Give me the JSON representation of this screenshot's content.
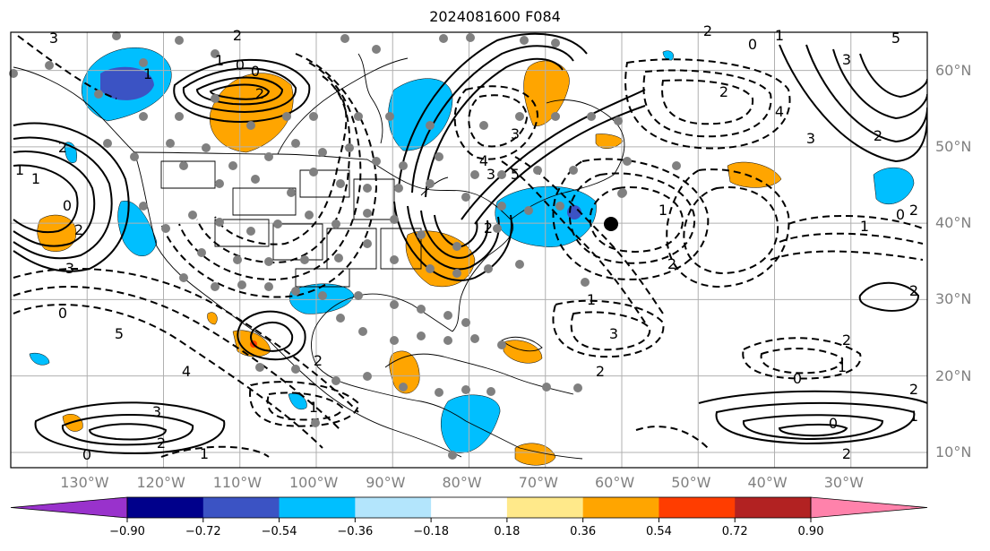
{
  "title": "2024081600 F084",
  "map": {
    "projection": "plate-carree",
    "lon_range": [
      -140,
      -20
    ],
    "lat_range": [
      8,
      65
    ],
    "lon_ticks": [
      "130°W",
      "120°W",
      "110°W",
      "100°W",
      "90°W",
      "80°W",
      "70°W",
      "60°W",
      "50°W",
      "40°W",
      "30°W"
    ],
    "lat_ticks": [
      "60°N",
      "50°N",
      "40°N",
      "30°N",
      "20°N",
      "10°N"
    ],
    "grid": true,
    "contour_labels": [
      "3",
      "2",
      "1",
      "0",
      "0",
      "1",
      "2",
      "3",
      "4",
      "5",
      "2",
      "1",
      "0",
      "2",
      "4",
      "3",
      "2",
      "5",
      "3",
      "2",
      "1",
      "0",
      "1",
      "2",
      "3",
      "2",
      "1",
      "0",
      "2",
      "2",
      "1",
      "0",
      "2",
      "0",
      "1",
      "2",
      "1",
      "2",
      "3",
      "0",
      "5",
      "4",
      "2",
      "1",
      "3",
      "2",
      "1",
      "0",
      "3",
      "2",
      "1",
      "2"
    ],
    "colors": {
      "land_outline": "#000000",
      "grid": "#b0b0b0",
      "station_marker": "#808080",
      "highlight_marker": "#000000"
    }
  },
  "colorbar": {
    "tick_labels": [
      "−0.90",
      "−0.72",
      "−0.54",
      "−0.36",
      "−0.18",
      "0.18",
      "0.36",
      "0.54",
      "0.72",
      "0.90"
    ],
    "colors": [
      "#9932cc",
      "#00008b",
      "#3b53c4",
      "#00bfff",
      "#b3e5fc",
      "#ffffff",
      "#ffe98a",
      "#ffa500",
      "#ff3d00",
      "#b22222",
      "#ff82ab"
    ],
    "extend": "both"
  }
}
